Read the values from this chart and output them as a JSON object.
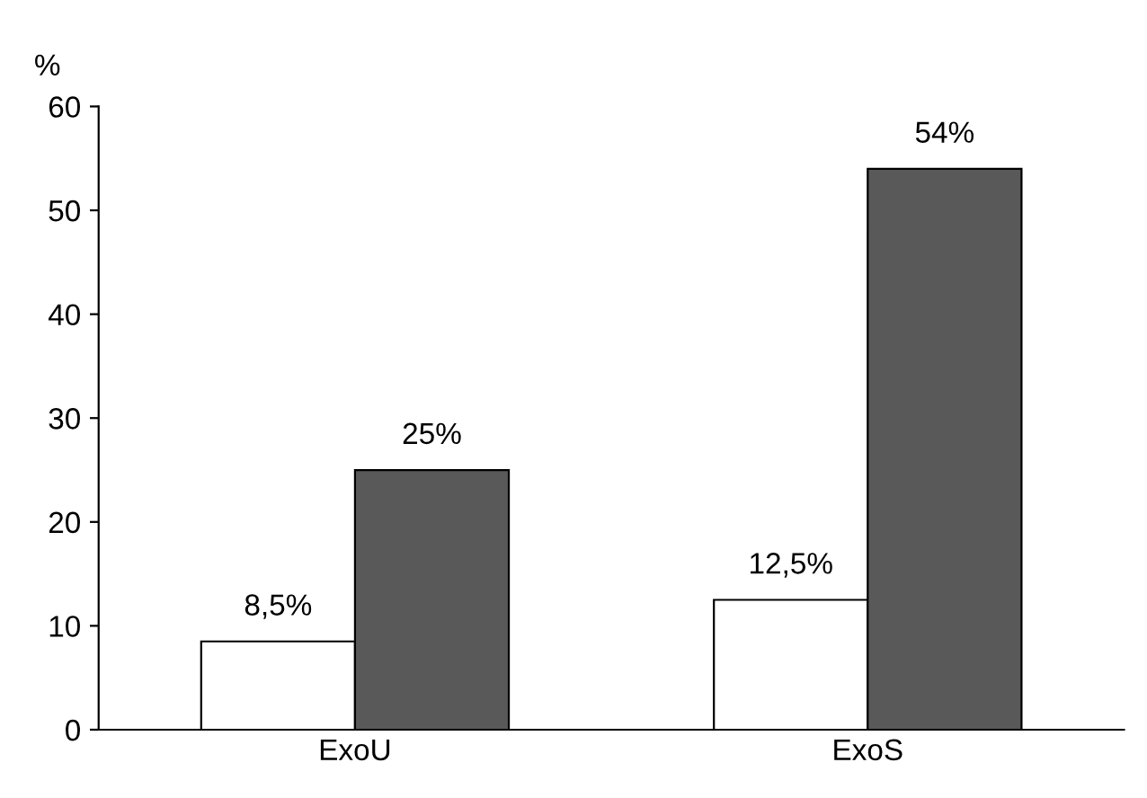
{
  "chart_data": {
    "type": "bar",
    "ylabel": "%",
    "categories": [
      "ExoU",
      "ExoS"
    ],
    "series": [
      {
        "color": "#ffffff",
        "values": [
          8.5,
          12.5
        ],
        "value_labels": [
          "8,5%",
          "12,5%"
        ]
      },
      {
        "color": "#595959",
        "values": [
          25,
          54
        ],
        "value_labels": [
          "25%",
          "54%"
        ]
      }
    ],
    "ylim": [
      0,
      60
    ],
    "yticks": [
      0,
      10,
      20,
      30,
      40,
      50,
      60
    ],
    "grid": false,
    "legend": false
  }
}
